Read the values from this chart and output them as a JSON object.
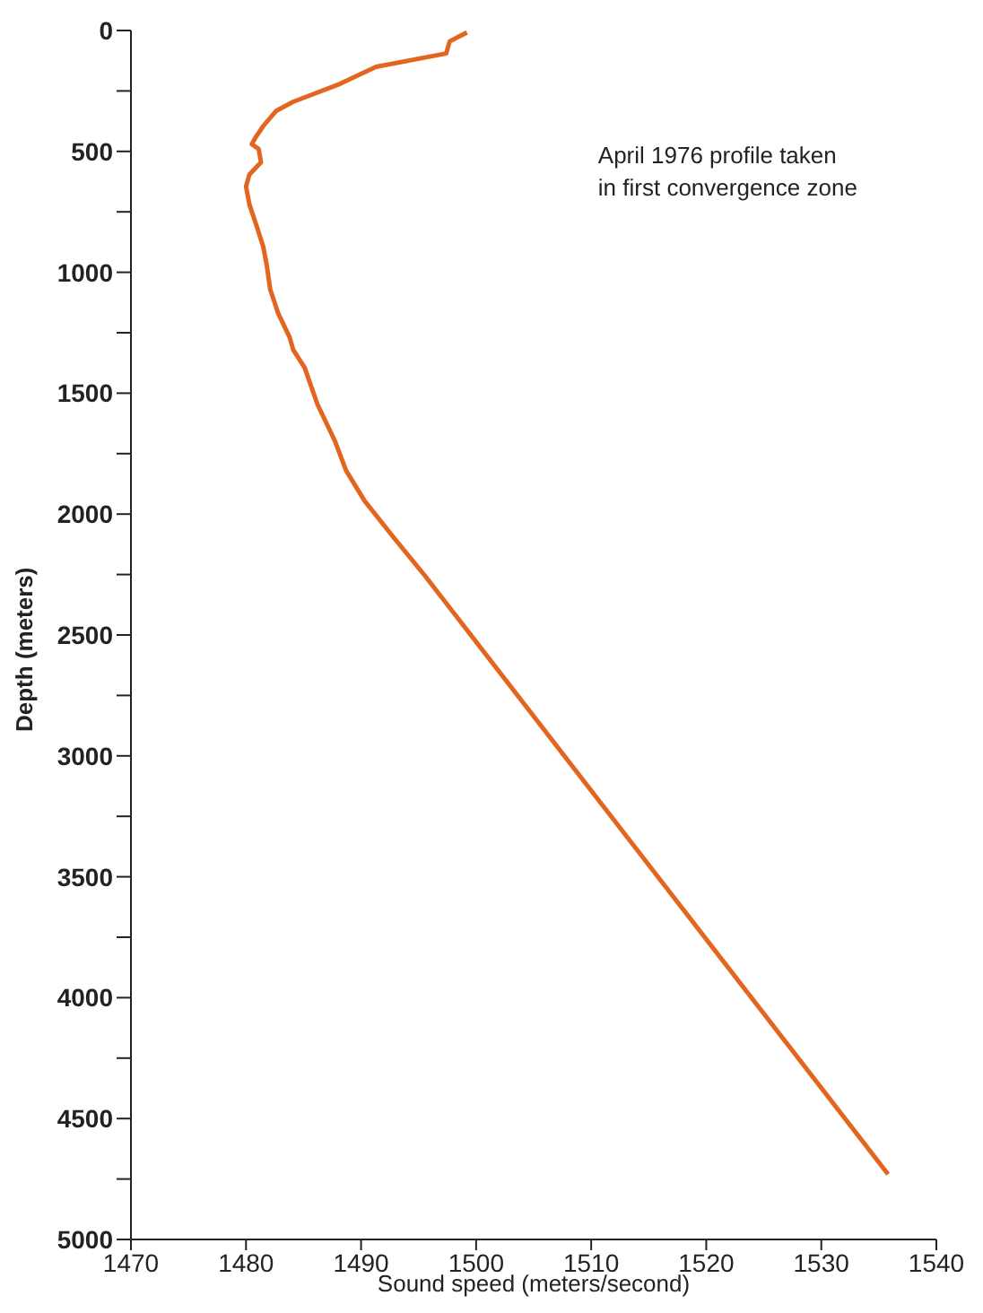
{
  "chart_data": {
    "type": "line",
    "xlabel": "Sound speed (meters/second)",
    "ylabel": "Depth (meters)",
    "annotations": [
      "April 1976 profile taken\nin first convergence zone"
    ],
    "series": [
      {
        "color": "#e2661f",
        "x": [
          1499.2,
          1498.5,
          1497.7,
          1497.4,
          1491.3,
          1488.2,
          1484.1,
          1482.6,
          1481.5,
          1480.8,
          1480.5,
          1481.1,
          1481.3,
          1480.3,
          1480.0,
          1480.3,
          1481.0,
          1481.5,
          1481.8,
          1482.1,
          1482.8,
          1483.8,
          1484.1,
          1485.1,
          1486.2,
          1487.7,
          1488.7,
          1490.3,
          1492.8,
          1495.6,
          1535.8
        ],
        "values": [
          8,
          25,
          45,
          95,
          150,
          220,
          295,
          333,
          395,
          445,
          470,
          490,
          545,
          595,
          645,
          720,
          820,
          895,
          970,
          1070,
          1170,
          1270,
          1320,
          1395,
          1545,
          1695,
          1820,
          1945,
          2095,
          2258,
          4730
        ]
      }
    ],
    "xlim": [
      1470,
      1540
    ],
    "xticks": [
      1470,
      1480,
      1490,
      1500,
      1510,
      1520,
      1530,
      1540
    ],
    "ylim": [
      5000,
      0
    ],
    "yticks": [
      0,
      {
        "value": 250,
        "label": null
      },
      500,
      {
        "value": 750,
        "label": null
      },
      1000,
      {
        "value": 1250,
        "label": null
      },
      1500,
      {
        "value": 1750,
        "label": null
      },
      2000,
      {
        "value": 2250,
        "label": null
      },
      2500,
      {
        "value": 2750,
        "label": null
      },
      3000,
      {
        "value": 3250,
        "label": null
      },
      3500,
      {
        "value": 3750,
        "label": null
      },
      4000,
      {
        "value": 4250,
        "label": null
      },
      4500,
      {
        "value": 4750,
        "label": null
      },
      5000
    ],
    "grid": false,
    "marker": "none",
    "line_style": "solid"
  }
}
